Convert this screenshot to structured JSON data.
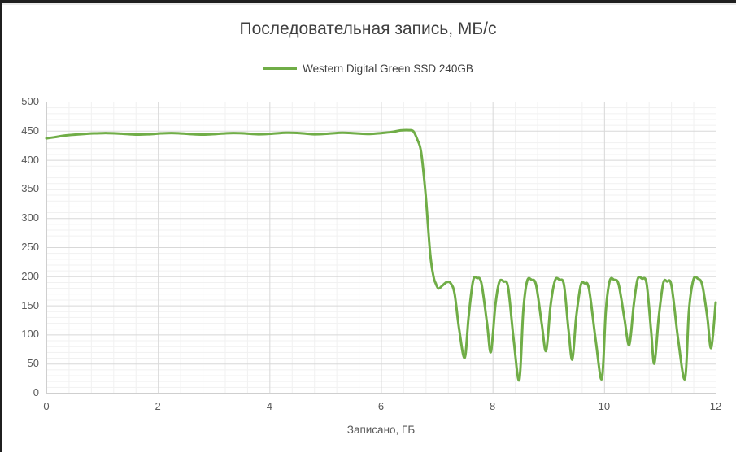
{
  "window": {
    "frame_color": "#1f1f1f",
    "background": "#ffffff"
  },
  "chart_data": {
    "type": "line",
    "title": "Последовательная запись, МБ/с",
    "xlabel": "Записано, ГБ",
    "ylabel": "",
    "xlim": [
      0,
      12
    ],
    "ylim": [
      0,
      500
    ],
    "x_major_step": 2,
    "x_minor_step": 0.4,
    "y_major_step": 50,
    "y_minor_step": 10,
    "x_major_ticks": [
      "0",
      "2",
      "4",
      "6",
      "8",
      "10",
      "12"
    ],
    "y_major_ticks": [
      "500",
      "450",
      "400",
      "350",
      "300",
      "250",
      "200",
      "150",
      "100",
      "50",
      "0"
    ],
    "grid": "major+minor",
    "legend_position": "top-center",
    "colors": {
      "series_green": "#70AD47",
      "title_text": "#3f3f3f",
      "axis_text": "#595959",
      "major_grid": "#d8d8d8",
      "minor_grid": "#f1f1f1",
      "plot_border": "#cfcfcf"
    },
    "series": [
      {
        "name": "Western Digital Green SSD 240GB",
        "color": "#70AD47",
        "points": [
          [
            0,
            437
          ],
          [
            0.15,
            439
          ],
          [
            0.35,
            442
          ],
          [
            0.6,
            444
          ],
          [
            0.85,
            445.5
          ],
          [
            1.1,
            446
          ],
          [
            1.35,
            445
          ],
          [
            1.6,
            443.5
          ],
          [
            1.85,
            444
          ],
          [
            2.05,
            445.5
          ],
          [
            2.3,
            446
          ],
          [
            2.55,
            444.5
          ],
          [
            2.8,
            443.5
          ],
          [
            3.05,
            444.5
          ],
          [
            3.3,
            446
          ],
          [
            3.55,
            445.5
          ],
          [
            3.8,
            444
          ],
          [
            4.05,
            445
          ],
          [
            4.3,
            446.5
          ],
          [
            4.55,
            446
          ],
          [
            4.8,
            444
          ],
          [
            5.05,
            445
          ],
          [
            5.3,
            446.5
          ],
          [
            5.55,
            445.5
          ],
          [
            5.8,
            444.5
          ],
          [
            6.0,
            446
          ],
          [
            6.2,
            448
          ],
          [
            6.35,
            450.5
          ],
          [
            6.5,
            451
          ],
          [
            6.58,
            449
          ],
          [
            6.65,
            435
          ],
          [
            6.72,
            413
          ],
          [
            6.8,
            340
          ],
          [
            6.88,
            240
          ],
          [
            6.94,
            200
          ],
          [
            6.98,
            188
          ],
          [
            7.03,
            179
          ],
          [
            7.1,
            184
          ],
          [
            7.18,
            190
          ],
          [
            7.25,
            188
          ],
          [
            7.32,
            170
          ],
          [
            7.4,
            110
          ],
          [
            7.5,
            60
          ],
          [
            7.57,
            130
          ],
          [
            7.65,
            192
          ],
          [
            7.72,
            197
          ],
          [
            7.8,
            188
          ],
          [
            7.9,
            120
          ],
          [
            7.97,
            70
          ],
          [
            8.05,
            150
          ],
          [
            8.12,
            190
          ],
          [
            8.2,
            191
          ],
          [
            8.28,
            180
          ],
          [
            8.38,
            90
          ],
          [
            8.48,
            22
          ],
          [
            8.55,
            140
          ],
          [
            8.62,
            192
          ],
          [
            8.7,
            194
          ],
          [
            8.78,
            185
          ],
          [
            8.88,
            120
          ],
          [
            8.96,
            72
          ],
          [
            9.04,
            150
          ],
          [
            9.12,
            193
          ],
          [
            9.2,
            194
          ],
          [
            9.28,
            185
          ],
          [
            9.36,
            110
          ],
          [
            9.43,
            57
          ],
          [
            9.5,
            130
          ],
          [
            9.58,
            184
          ],
          [
            9.65,
            188
          ],
          [
            9.73,
            178
          ],
          [
            9.85,
            90
          ],
          [
            9.96,
            24
          ],
          [
            10.03,
            140
          ],
          [
            10.1,
            192
          ],
          [
            10.18,
            194
          ],
          [
            10.26,
            186
          ],
          [
            10.36,
            130
          ],
          [
            10.45,
            82
          ],
          [
            10.53,
            150
          ],
          [
            10.6,
            195
          ],
          [
            10.68,
            196
          ],
          [
            10.76,
            188
          ],
          [
            10.84,
            110
          ],
          [
            10.9,
            50
          ],
          [
            10.98,
            130
          ],
          [
            11.06,
            188
          ],
          [
            11.13,
            191
          ],
          [
            11.21,
            183
          ],
          [
            11.33,
            90
          ],
          [
            11.45,
            24
          ],
          [
            11.52,
            140
          ],
          [
            11.6,
            194
          ],
          [
            11.68,
            196
          ],
          [
            11.76,
            185
          ],
          [
            11.85,
            130
          ],
          [
            11.92,
            77
          ],
          [
            12,
            155
          ]
        ]
      }
    ]
  }
}
